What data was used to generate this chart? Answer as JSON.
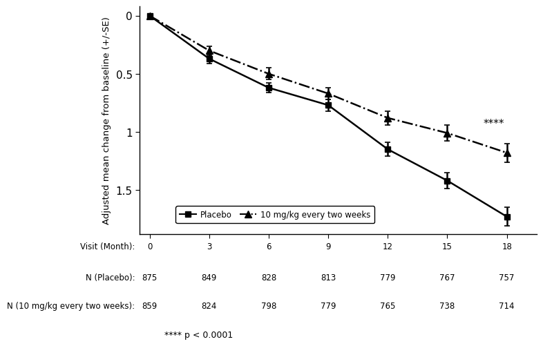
{
  "x": [
    0,
    3,
    6,
    9,
    12,
    15,
    18
  ],
  "placebo_y": [
    0.0,
    0.37,
    0.62,
    0.77,
    1.15,
    1.42,
    1.73
  ],
  "placebo_se": [
    0.0,
    0.04,
    0.04,
    0.05,
    0.06,
    0.07,
    0.08
  ],
  "treatment_y": [
    0.0,
    0.3,
    0.5,
    0.67,
    0.88,
    1.01,
    1.18
  ],
  "treatment_se": [
    0.0,
    0.04,
    0.05,
    0.05,
    0.06,
    0.07,
    0.08
  ],
  "ylabel": "Adjusted mean change from baseline (+/-SE)",
  "yticks": [
    0.0,
    0.5,
    1.0,
    1.5
  ],
  "ytick_labels": [
    "0",
    "0.5",
    "1",
    "1.5"
  ],
  "xticks": [
    0,
    3,
    6,
    9,
    12,
    15,
    18
  ],
  "ylim_bottom": 1.88,
  "ylim_top": -0.08,
  "xlim": [
    -0.5,
    19.5
  ],
  "placebo_label": "Placebo",
  "treatment_label": "10 mg/kg every two weeks",
  "visit_months": [
    0,
    3,
    6,
    9,
    12,
    15,
    18
  ],
  "n_placebo": [
    875,
    849,
    828,
    813,
    779,
    767,
    757
  ],
  "n_treatment": [
    859,
    824,
    798,
    779,
    765,
    738,
    714
  ],
  "significance_stars": "****",
  "significance_full": "**** p < 0.0001",
  "significance_x": 16.8,
  "significance_y": 0.93,
  "line_color": "#000000",
  "table_label_visit": "Visit (Month):",
  "table_label_placebo": "N (Placebo):",
  "table_label_treatment": "N (10 mg/kg every two weeks):"
}
